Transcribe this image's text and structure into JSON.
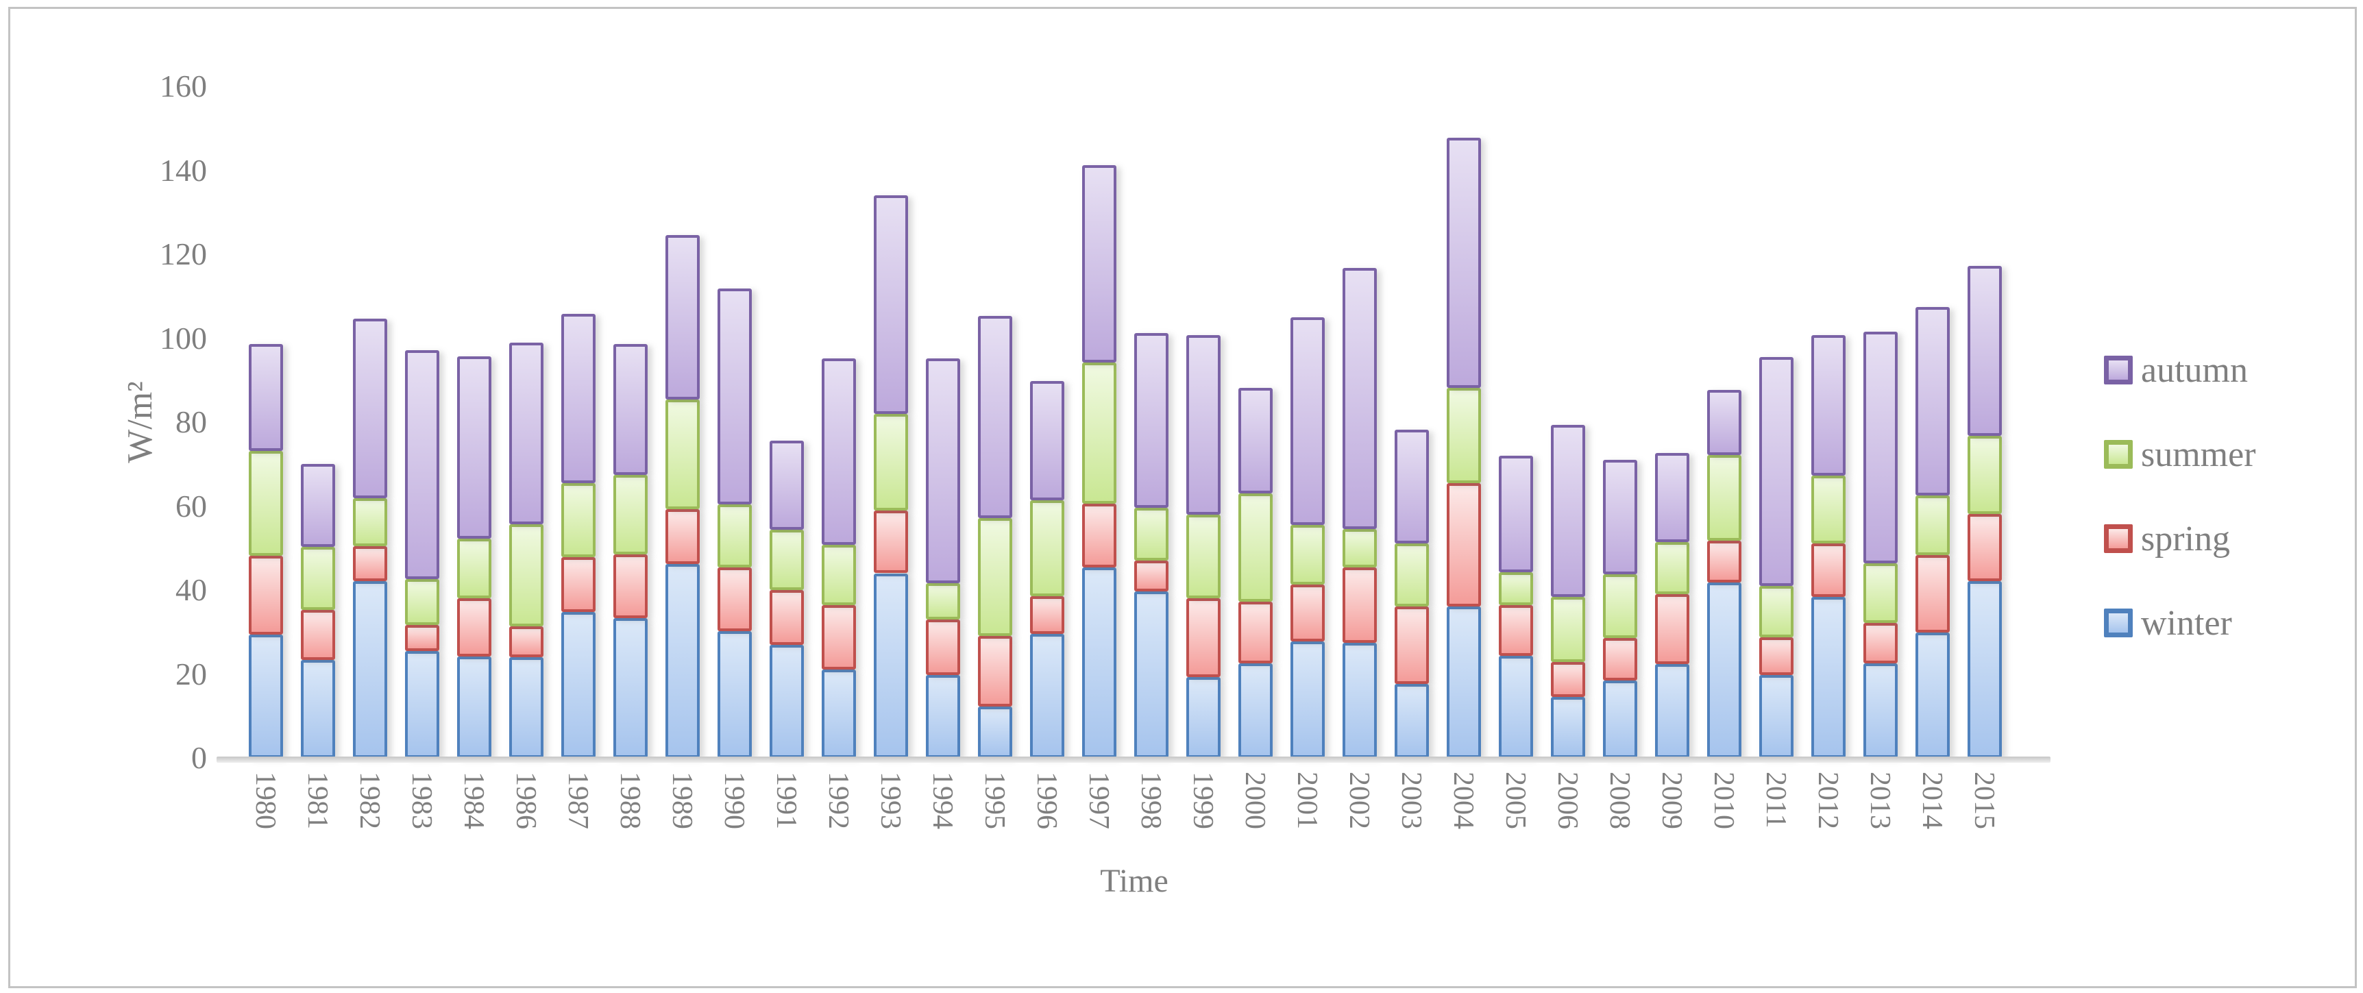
{
  "figure": {
    "background": "#ffffff",
    "border_color": "#c3c3c3",
    "text_color": "#7f7f7f",
    "baseline_color": "#c9c9c9"
  },
  "chart_data": {
    "type": "bar",
    "stacked": true,
    "title": "",
    "xlabel": "Time",
    "ylabel": "W/m²",
    "ylim": [
      0,
      160
    ],
    "yticks": [
      0,
      20,
      40,
      60,
      80,
      100,
      120,
      140,
      160
    ],
    "grid": false,
    "legend_position": "right",
    "legend_order": [
      "autumn",
      "summer",
      "spring",
      "winter"
    ],
    "categories": [
      "1980",
      "1981",
      "1982",
      "1983",
      "1984",
      "1986",
      "1987",
      "1988",
      "1989",
      "1990",
      "1991",
      "1992",
      "1993",
      "1994",
      "1995",
      "1996",
      "1997",
      "1998",
      "1999",
      "2000",
      "2001",
      "2002",
      "2003",
      "2004",
      "2005",
      "2006",
      "2008",
      "2009",
      "2010",
      "2011",
      "2012",
      "2013",
      "2014",
      "2015"
    ],
    "series": [
      {
        "name": "winter",
        "border_color": "#4f81bd",
        "fill_top": "#dbe8f8",
        "fill_bottom": "#a6c4ed",
        "values": [
          29.4,
          23.3,
          42.2,
          25.4,
          24.2,
          24.0,
          34.7,
          33.3,
          46.2,
          30.2,
          27.0,
          21.0,
          44.0,
          19.8,
          12.2,
          29.6,
          45.4,
          39.7,
          19.3,
          22.5,
          27.7,
          27.4,
          17.6,
          36.1,
          24.4,
          14.6,
          18.4,
          22.3,
          41.8,
          19.8,
          38.3,
          22.6,
          29.9,
          42.1
        ]
      },
      {
        "name": "spring",
        "border_color": "#c0504d",
        "fill_top": "#fce9e8",
        "fill_bottom": "#f49c99",
        "values": [
          18.8,
          12.0,
          8.2,
          6.2,
          13.9,
          7.3,
          13.2,
          15.2,
          13.0,
          15.2,
          13.0,
          15.4,
          14.9,
          13.1,
          16.9,
          9.0,
          15.1,
          7.3,
          18.7,
          14.7,
          13.6,
          18.0,
          18.5,
          29.3,
          12.0,
          8.2,
          10.1,
          16.8,
          10.0,
          9.0,
          12.8,
          9.5,
          18.5,
          16.1
        ]
      },
      {
        "name": "summer",
        "border_color": "#9bbb59",
        "fill_top": "#f0f9e1",
        "fill_bottom": "#c9e793",
        "values": [
          25.0,
          15.0,
          11.5,
          11.0,
          14.1,
          24.4,
          17.6,
          19.0,
          26.2,
          15.0,
          14.4,
          14.4,
          23.0,
          8.7,
          28.0,
          22.8,
          33.7,
          12.6,
          19.9,
          25.8,
          14.2,
          9.2,
          15.0,
          22.8,
          7.9,
          15.5,
          15.3,
          12.3,
          20.4,
          12.2,
          16.1,
          14.3,
          14.1,
          18.5
        ]
      },
      {
        "name": "autumn",
        "border_color": "#7a62a5",
        "fill_top": "#e7e0f3",
        "fill_bottom": "#bda9dc",
        "values": [
          25.4,
          19.8,
          42.7,
          54.6,
          43.5,
          43.2,
          40.3,
          31.1,
          39.1,
          51.4,
          21.2,
          44.4,
          52.1,
          53.6,
          48.2,
          28.4,
          47.0,
          41.6,
          42.8,
          25.2,
          49.5,
          62.1,
          27.1,
          59.6,
          27.7,
          41.1,
          27.2,
          21.2,
          15.4,
          54.5,
          33.5,
          55.1,
          45.0,
          40.6
        ]
      }
    ]
  }
}
